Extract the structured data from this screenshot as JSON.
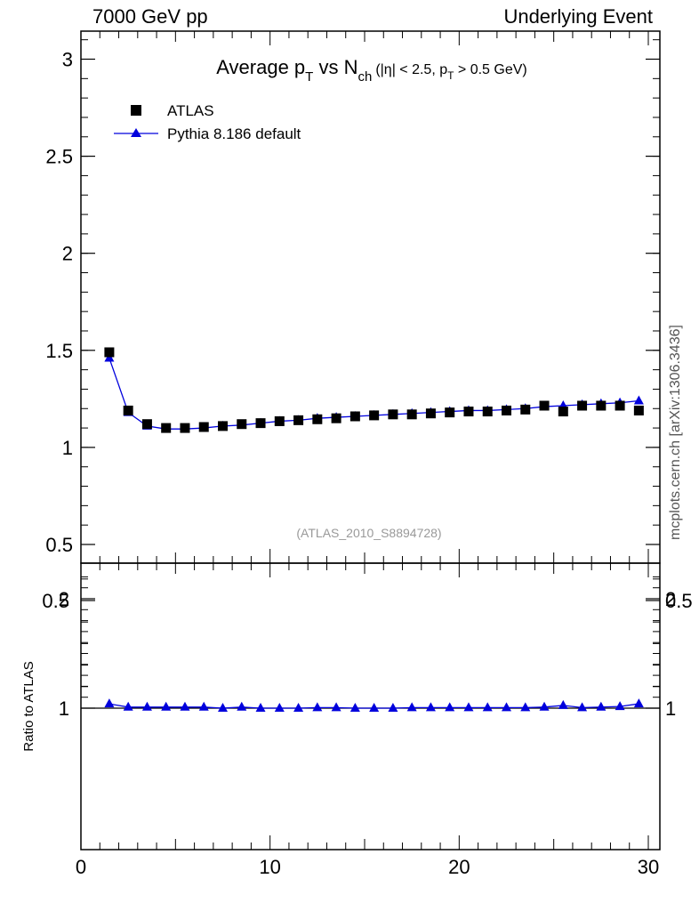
{
  "header": {
    "left": "7000 GeV pp",
    "right": "Underlying Event"
  },
  "side_label": "mcplots.cern.ch [arXiv:1306.3436]",
  "colors": {
    "data": "#000000",
    "mc": "#0000dd",
    "band_inner": "#7ff27f",
    "band_outer": "#ffff88",
    "watermark": "#999999"
  },
  "chart_data": [
    {
      "type": "scatter",
      "title_parts": {
        "prefix": "Average p",
        "sub1": "T",
        "mid": " vs N",
        "sub2": "ch",
        "cut_a": "(|η| < 2.5, p",
        "cut_sub": "T",
        "cut_b": " > 0.5 GeV)"
      },
      "watermark": "(ATLAS_2010_S8894728)",
      "xlim": [
        0,
        30
      ],
      "ylim": [
        0.4,
        3.15
      ],
      "y_ticks": [
        0.5,
        1,
        1.5,
        2,
        2.5,
        3
      ],
      "y_tick_labels": [
        "0.5",
        "1",
        "1.5",
        "2",
        "2.5",
        "3"
      ],
      "legend_position": "top-left",
      "series": [
        {
          "name": "ATLAS",
          "marker": "square",
          "x": [
            1.5,
            2.5,
            3.5,
            4.5,
            5.5,
            6.5,
            7.5,
            8.5,
            9.5,
            10.5,
            11.5,
            12.5,
            13.5,
            14.5,
            15.5,
            16.5,
            17.5,
            18.5,
            19.5,
            20.5,
            21.5,
            22.5,
            23.5,
            24.5,
            25.5,
            26.5,
            27.5,
            28.5,
            29.5
          ],
          "y": [
            1.49,
            1.19,
            1.12,
            1.1,
            1.1,
            1.105,
            1.11,
            1.12,
            1.125,
            1.135,
            1.14,
            1.145,
            1.15,
            1.16,
            1.165,
            1.17,
            1.17,
            1.175,
            1.18,
            1.185,
            1.185,
            1.19,
            1.195,
            1.215,
            1.185,
            1.215,
            1.215,
            1.215,
            1.19
          ]
        },
        {
          "name": "Pythia 8.186 default",
          "marker": "triangle",
          "x": [
            1.5,
            2.5,
            3.5,
            4.5,
            5.5,
            6.5,
            7.5,
            8.5,
            9.5,
            10.5,
            11.5,
            12.5,
            13.5,
            14.5,
            15.5,
            16.5,
            17.5,
            18.5,
            19.5,
            20.5,
            21.5,
            22.5,
            23.5,
            24.5,
            25.5,
            26.5,
            27.5,
            28.5,
            29.5
          ],
          "y": [
            1.46,
            1.18,
            1.11,
            1.095,
            1.095,
            1.1,
            1.11,
            1.115,
            1.125,
            1.135,
            1.14,
            1.15,
            1.155,
            1.16,
            1.165,
            1.17,
            1.175,
            1.18,
            1.185,
            1.19,
            1.19,
            1.195,
            1.2,
            1.21,
            1.215,
            1.22,
            1.225,
            1.23,
            1.24
          ]
        }
      ]
    },
    {
      "type": "scatter",
      "ylabel": "Ratio to ATLAS",
      "xlim": [
        0,
        30
      ],
      "ylim": [
        0.3,
        2.3
      ],
      "x_ticks": [
        0,
        10,
        20,
        30
      ],
      "x_tick_labels": [
        "0",
        "10",
        "20",
        "30"
      ],
      "y_ticks": [
        0.5,
        1,
        2
      ],
      "y_tick_labels": [
        "0.5",
        "1",
        "2"
      ],
      "reference_line": 1,
      "bands": {
        "x": [
          1.5,
          2.5,
          3.5,
          4.5,
          5.5,
          6.5,
          7.5,
          8.5,
          9.5,
          10.5,
          11.5,
          12.5,
          13.5,
          14.5,
          15.5,
          16.5,
          17.5,
          18.5,
          19.5,
          20.5,
          21.5,
          22.5,
          23.5,
          24.5,
          25.5,
          26.5,
          27.5,
          28.5,
          29.5
        ],
        "inner_half": [
          0.04,
          0.02,
          0.02,
          0.02,
          0.02,
          0.02,
          0.02,
          0.02,
          0.02,
          0.02,
          0.02,
          0.02,
          0.02,
          0.02,
          0.02,
          0.02,
          0.02,
          0.02,
          0.02,
          0.02,
          0.02,
          0.02,
          0.02,
          0.02,
          0.025,
          0.025,
          0.025,
          0.03,
          0.035
        ],
        "outer_half": [
          0.07,
          0.035,
          0.035,
          0.035,
          0.035,
          0.035,
          0.035,
          0.035,
          0.035,
          0.035,
          0.035,
          0.035,
          0.035,
          0.035,
          0.035,
          0.035,
          0.035,
          0.035,
          0.035,
          0.035,
          0.035,
          0.035,
          0.035,
          0.035,
          0.04,
          0.04,
          0.045,
          0.05,
          0.06
        ]
      },
      "series": [
        {
          "name": "Pythia 8.186 default",
          "x": [
            1.5,
            2.5,
            3.5,
            4.5,
            5.5,
            6.5,
            7.5,
            8.5,
            9.5,
            10.5,
            11.5,
            12.5,
            13.5,
            14.5,
            15.5,
            16.5,
            17.5,
            18.5,
            19.5,
            20.5,
            21.5,
            22.5,
            23.5,
            24.5,
            25.5,
            26.5,
            27.5,
            28.5,
            29.5
          ],
          "y": [
            0.98,
            0.995,
            0.995,
            0.995,
            0.995,
            0.995,
            1.0,
            0.995,
            1.0,
            1.0,
            1.0,
            1.005,
            1.005,
            1.0,
            1.0,
            1.0,
            1.005,
            1.005,
            1.005,
            1.005,
            1.005,
            1.005,
            1.005,
            0.995,
            1.025,
            1.005,
            1.01,
            1.015,
            1.04
          ]
        }
      ]
    }
  ]
}
